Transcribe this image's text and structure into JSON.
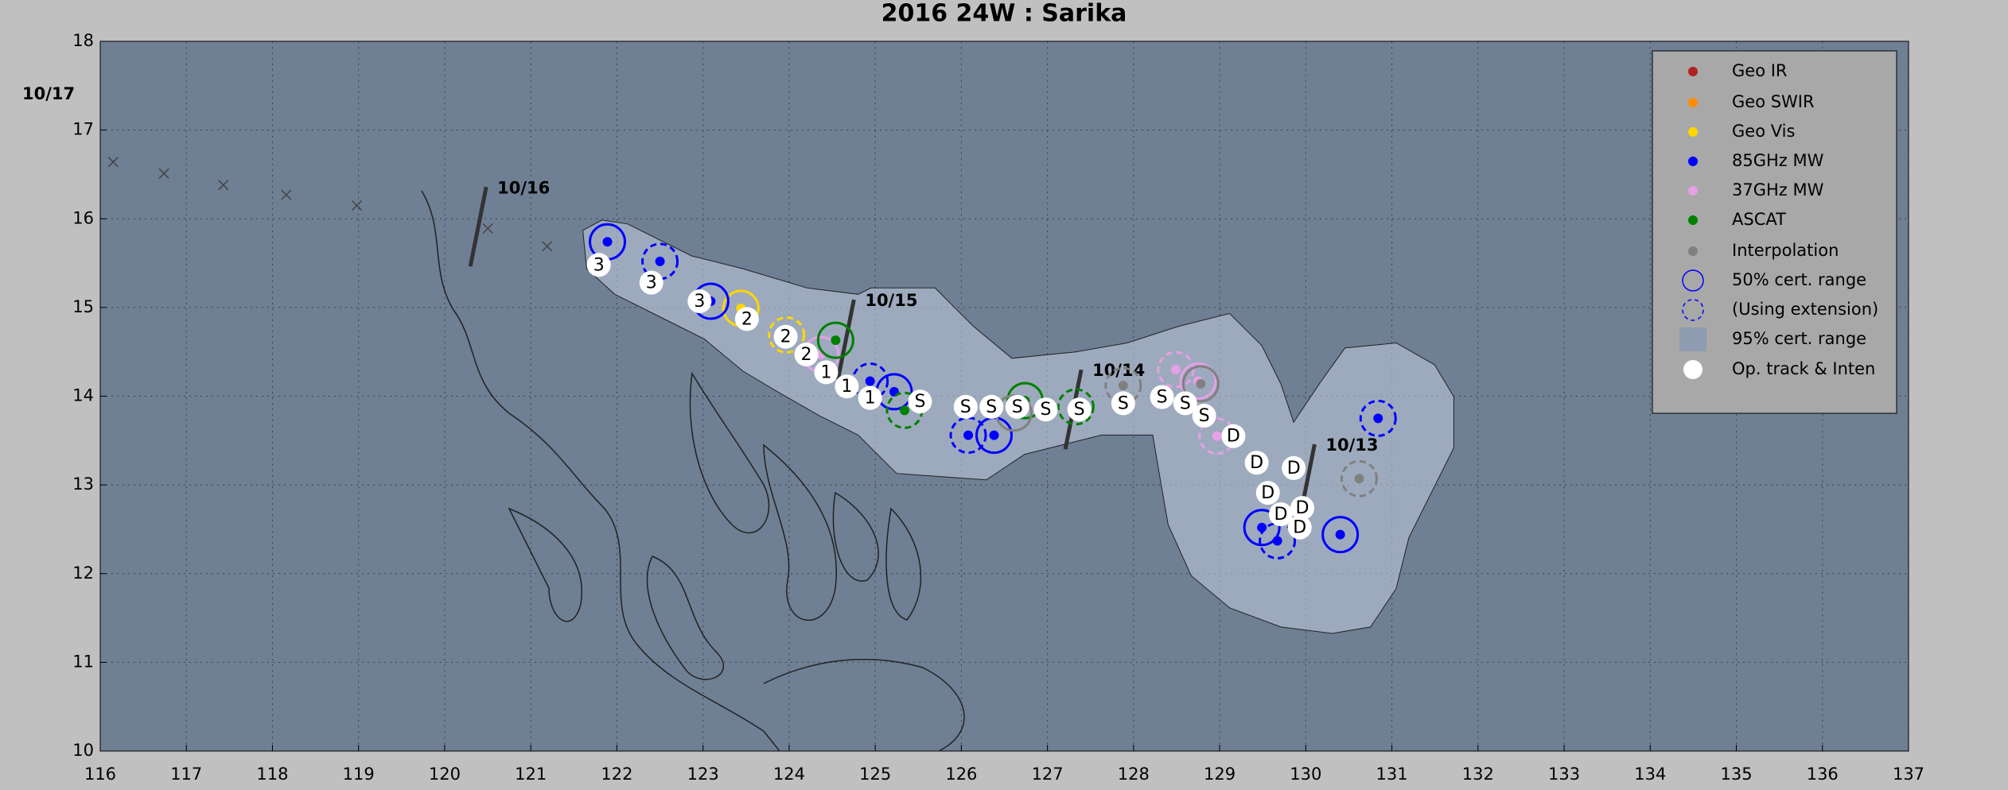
{
  "chart_data": {
    "type": "scatter",
    "title": "2016  24W :  Sarika",
    "xlim": [
      116,
      137
    ],
    "ylim": [
      10,
      18
    ],
    "xticks": [
      116,
      117,
      118,
      119,
      120,
      121,
      122,
      123,
      124,
      125,
      126,
      127,
      128,
      129,
      130,
      131,
      132,
      133,
      134,
      135,
      136,
      137
    ],
    "yticks": [
      10,
      11,
      12,
      13,
      14,
      15,
      16,
      17,
      18
    ],
    "grid": true,
    "legend": "upper right",
    "series": [
      {
        "name": "Geo IR",
        "color": "#b22222",
        "x": [],
        "y": []
      },
      {
        "name": "Geo SWIR",
        "color": "#ff8c00",
        "x": [],
        "y": []
      },
      {
        "name": "Geo Vis",
        "color": "#ffd700",
        "x": [
          123.44,
          123.97
        ],
        "y": [
          14.99,
          14.69
        ]
      },
      {
        "name": "85GHz MW",
        "color": "#0000ff",
        "x": [
          121.89,
          122.5,
          123.09,
          124.94,
          125.22,
          126.08,
          126.38,
          130.84,
          129.49,
          129.67,
          130.4
        ],
        "y": [
          15.74,
          15.52,
          15.07,
          14.17,
          14.05,
          13.56,
          13.56,
          13.75,
          12.52,
          12.37,
          12.44
        ]
      },
      {
        "name": "37GHz MW",
        "color": "#e6a0e6",
        "x": [
          124.37,
          128.49,
          128.75,
          128.97
        ],
        "y": [
          14.47,
          14.3,
          14.17,
          13.55
        ]
      },
      {
        "name": "ASCAT",
        "color": "#008000",
        "x": [
          124.54,
          125.34,
          126.74,
          127.33
        ],
        "y": [
          14.63,
          13.84,
          13.95,
          13.88
        ]
      },
      {
        "name": "Interpolation",
        "color": "#808080",
        "x": [
          126.61,
          127.88,
          128.78,
          130.62
        ],
        "y": [
          13.81,
          14.12,
          14.14,
          13.07
        ]
      }
    ],
    "legend_extra": [
      "50% cert. range",
      "(Using extension)",
      "95% cert. range",
      "Op. track & Inten"
    ],
    "op_track": {
      "x": [
        121.79,
        122.4,
        122.96,
        123.51,
        123.96,
        124.2,
        124.43,
        124.67,
        124.94,
        125.52,
        126.05,
        126.35,
        126.65,
        126.98,
        127.37,
        127.88,
        128.33,
        128.6,
        128.82,
        129.16,
        129.43,
        129.86,
        129.56,
        129.71,
        129.96,
        129.93
      ],
      "y": [
        15.48,
        15.28,
        15.07,
        14.87,
        14.67,
        14.47,
        14.27,
        14.11,
        13.98,
        13.94,
        13.88,
        13.88,
        13.88,
        13.85,
        13.85,
        13.92,
        13.99,
        13.92,
        13.78,
        13.55,
        13.25,
        13.19,
        12.91,
        12.67,
        12.74,
        12.52
      ],
      "labels": [
        "3",
        "3",
        "3",
        "2",
        "2",
        "2",
        "1",
        "1",
        "1",
        "S",
        "S",
        "S",
        "S",
        "S",
        "S",
        "S",
        "S",
        "S",
        "S",
        "D",
        "D",
        "D",
        "D",
        "D",
        "D",
        "D"
      ]
    },
    "extended_track": {
      "color": "#444444",
      "x": [
        116.15,
        116.74,
        117.43,
        118.16,
        118.98,
        120.5,
        121.19
      ],
      "y": [
        16.64,
        16.51,
        16.38,
        16.27,
        16.15,
        15.89,
        15.69
      ]
    },
    "date_marks": [
      {
        "label": "10/13",
        "x": 130.01,
        "y": 13.01
      },
      {
        "label": "10/14",
        "x": 127.3,
        "y": 13.85
      },
      {
        "label": "10/15",
        "x": 124.66,
        "y": 14.64
      },
      {
        "label": "10/16",
        "x": 120.39,
        "y": 15.91
      },
      {
        "label": "10/17",
        "x": 115.4,
        "y": 17.4
      }
    ]
  }
}
